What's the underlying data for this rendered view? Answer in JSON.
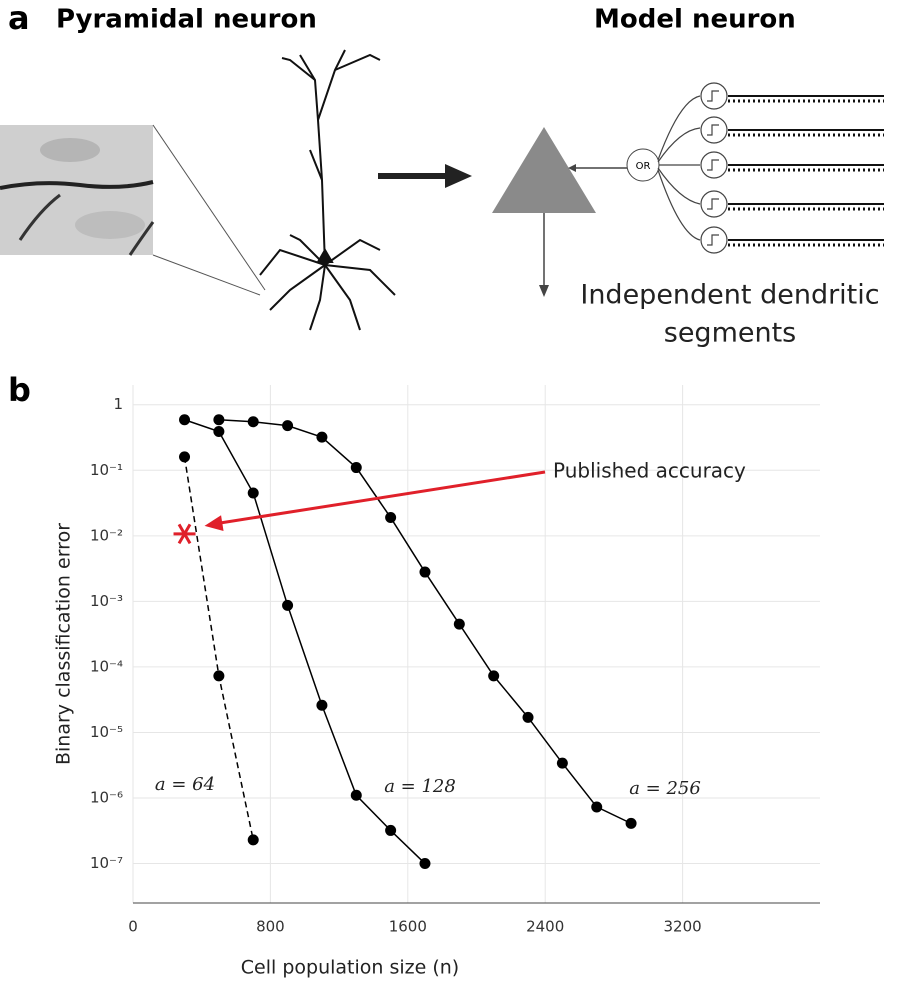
{
  "panel_a": {
    "label": "a",
    "left_title": "Pyramidal neuron",
    "right_title": "Model neuron",
    "gate": "OR",
    "caption_line1": "Independent dendritic",
    "caption_line2": "segments"
  },
  "panel_b_label": "b",
  "chart_data": {
    "type": "line",
    "log_y": true,
    "grid": true,
    "xlabel": "Cell population size (n)",
    "ylabel": "Binary classification error",
    "xlim": [
      0,
      4000
    ],
    "xticks": [
      0,
      800,
      1600,
      2400,
      3200
    ],
    "ylim": [
      2.5e-08,
      2
    ],
    "yticks": [
      1,
      {
        "value": 0.1,
        "label": "10⁻¹"
      },
      {
        "value": 0.01,
        "label": "10⁻²"
      },
      {
        "value": 0.001,
        "label": "10⁻³"
      },
      {
        "value": 0.0001,
        "label": "10⁻⁴"
      },
      {
        "value": 1e-05,
        "label": "10⁻⁵"
      },
      {
        "value": 1e-06,
        "label": "10⁻⁶"
      },
      {
        "value": 1e-07,
        "label": "10⁻⁷"
      }
    ],
    "series": [
      {
        "name": "a = 64",
        "color": "#000000",
        "dashed": true,
        "x": [
          300,
          500,
          700
        ],
        "values": [
          0.16,
          7.3e-05,
          2.3e-07
        ]
      },
      {
        "name": "a = 128",
        "color": "#000000",
        "dashed": false,
        "x": [
          300,
          500,
          700,
          900,
          1100,
          1300,
          1500,
          1700
        ],
        "values": [
          0.59,
          0.39,
          0.045,
          0.00087,
          2.6e-05,
          1.1e-06,
          3.2e-07,
          1e-07
        ]
      },
      {
        "name": "a = 256",
        "color": "#000000",
        "dashed": false,
        "x": [
          500,
          700,
          900,
          1100,
          1300,
          1500,
          1700,
          1900,
          2100,
          2300,
          2500,
          2700,
          2900
        ],
        "values": [
          0.59,
          0.55,
          0.48,
          0.32,
          0.11,
          0.019,
          0.0028,
          0.00045,
          7.3e-05,
          1.7e-05,
          3.4e-06,
          7.3e-07,
          4.1e-07
        ]
      }
    ],
    "annotation": {
      "text": "Published accuracy",
      "x": 300,
      "y": 0.0107,
      "color": "#e0202a"
    }
  }
}
